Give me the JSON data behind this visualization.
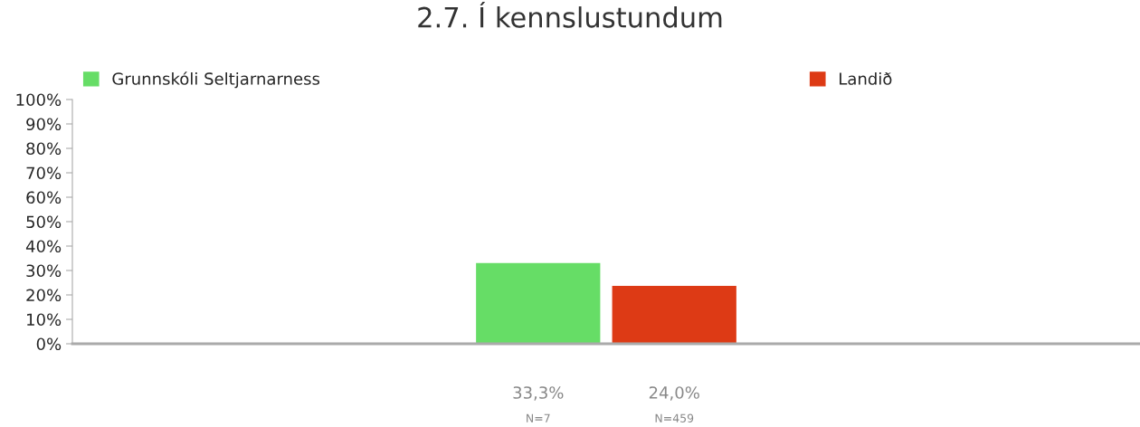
{
  "chart_data": {
    "type": "bar",
    "title": "2.7. Í kennslustundum",
    "categories": [
      null
    ],
    "series": [
      {
        "name": "Grunnskóli Seltjarnarness",
        "color": "#66dd66",
        "values": [
          33.3
        ],
        "value_labels": [
          "33,3%"
        ]
      },
      {
        "name": "Landið",
        "color": "#dd3a15",
        "values": [
          24.0
        ],
        "value_labels": [
          "24,0%"
        ]
      }
    ],
    "annotations": [
      "N=7",
      "N=459"
    ],
    "ylim": [
      0,
      100
    ],
    "yticks": [
      {
        "value": 0,
        "label": "0%"
      },
      {
        "value": 10,
        "label": "10%"
      },
      {
        "value": 20,
        "label": "20%"
      },
      {
        "value": 30,
        "label": "30%"
      },
      {
        "value": 40,
        "label": "40%"
      },
      {
        "value": 50,
        "label": "50%"
      },
      {
        "value": 60,
        "label": "60%"
      },
      {
        "value": 70,
        "label": "70%"
      },
      {
        "value": 80,
        "label": "80%"
      },
      {
        "value": 90,
        "label": "90%"
      },
      {
        "value": 100,
        "label": "100%"
      }
    ],
    "tick_labels": "y",
    "grid": false,
    "legend": "top"
  }
}
